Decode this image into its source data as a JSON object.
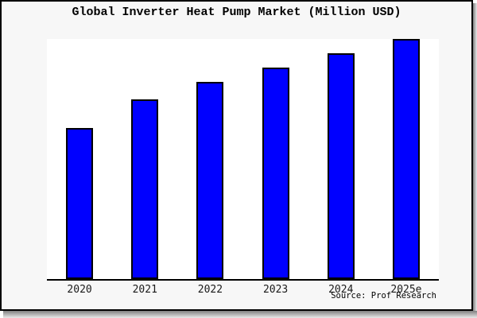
{
  "frame": {
    "background": "#f7f7f7",
    "border_color": "#000000",
    "shadow_color": "#808080"
  },
  "chart_data": {
    "type": "bar",
    "title": "Global Inverter Heat Pump Market (Million USD)",
    "categories": [
      "2020",
      "2021",
      "2022",
      "2023",
      "2024",
      "2025e"
    ],
    "values": [
      63,
      75,
      82,
      88,
      94,
      100
    ],
    "units": "relative bar height, % of tallest (2025e) bar; y-axis has no tick labels",
    "xlabel": "",
    "ylabel": "",
    "ylim": [
      0,
      100
    ],
    "grid": false,
    "legend": false,
    "bar_color": "#0000ff",
    "bar_border_color": "#000000",
    "plot_background": "#ffffff",
    "axis_line_color": "#000000"
  },
  "source": {
    "label": "Source: Prof Research"
  }
}
